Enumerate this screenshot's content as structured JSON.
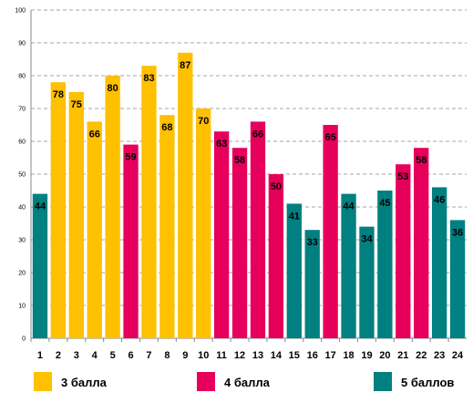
{
  "chart_data": {
    "type": "bar",
    "categories": [
      "1",
      "2",
      "3",
      "4",
      "5",
      "6",
      "7",
      "8",
      "9",
      "10",
      "11",
      "12",
      "13",
      "14",
      "15",
      "16",
      "17",
      "18",
      "19",
      "20",
      "21",
      "22",
      "23",
      "24"
    ],
    "values": [
      44,
      78,
      75,
      66,
      80,
      59,
      83,
      68,
      87,
      70,
      63,
      58,
      66,
      50,
      41,
      33,
      65,
      44,
      34,
      45,
      53,
      58,
      46,
      36
    ],
    "groups": [
      "5",
      "3",
      "3",
      "3",
      "3",
      "4",
      "3",
      "3",
      "3",
      "3",
      "4",
      "4",
      "4",
      "4",
      "5",
      "5",
      "4",
      "5",
      "5",
      "5",
      "4",
      "4",
      "5",
      "5"
    ],
    "ylim": [
      0,
      100
    ],
    "yticks": [
      0,
      10,
      20,
      30,
      40,
      50,
      60,
      70,
      80,
      90,
      100
    ],
    "grid": true,
    "legend_position": "bottom",
    "legend": [
      {
        "key": "3",
        "label": "3 балла",
        "color": "#FFC000"
      },
      {
        "key": "4",
        "label": "4 балла",
        "color": "#E6005C"
      },
      {
        "key": "5",
        "label": "5 баллов",
        "color": "#008080"
      }
    ]
  }
}
